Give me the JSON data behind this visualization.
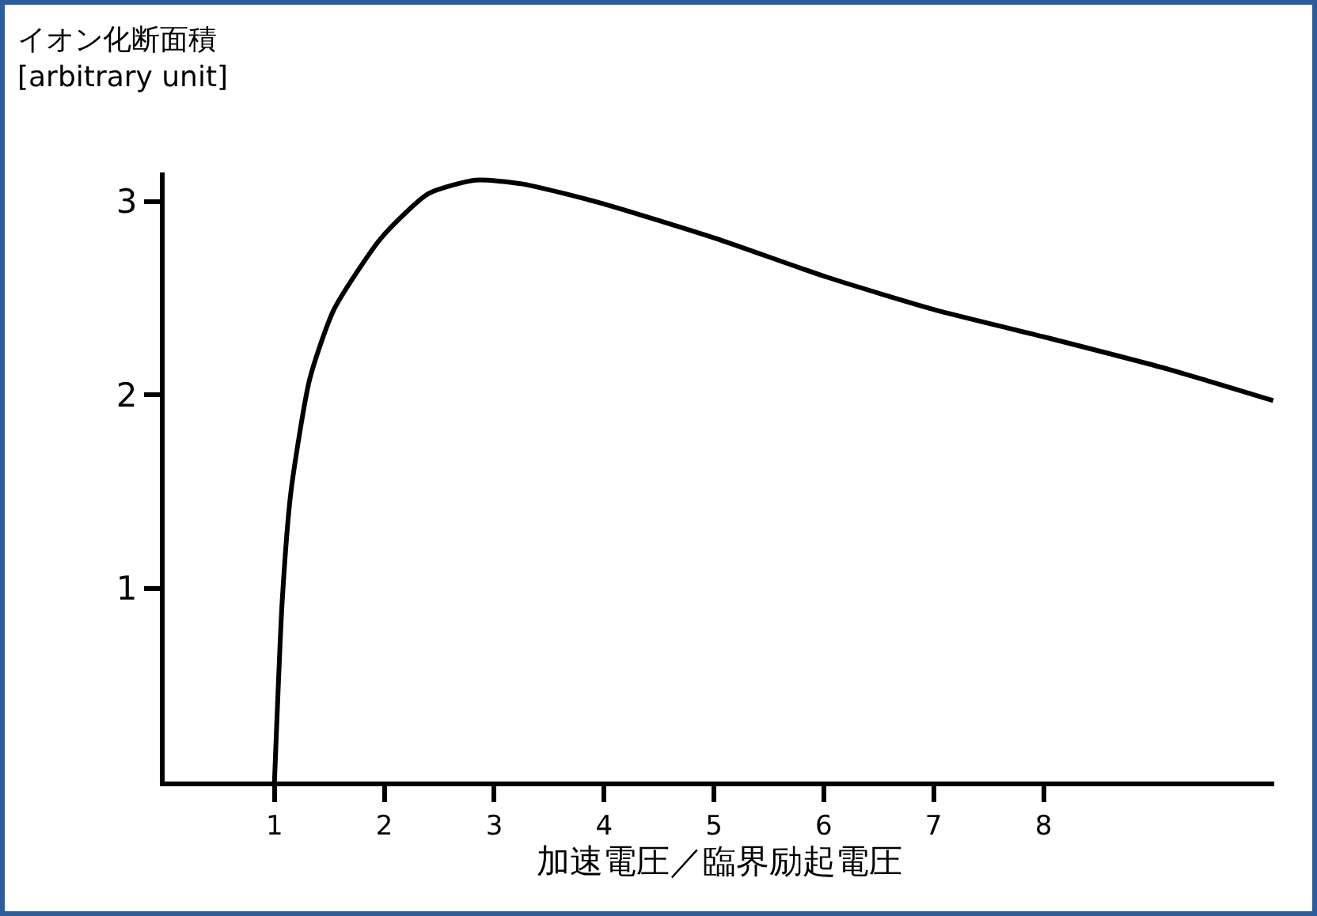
{
  "chart_data": {
    "type": "line",
    "xlabel": "加速電圧／臨界励起電圧",
    "ylabel": "イオン化断面積\n[arbitrary unit]",
    "x": [
      1,
      1.07,
      1.15,
      1.32,
      1.54,
      1.97,
      2.4,
      2.83,
      3.26,
      3.98,
      5.01,
      6.02,
      7.01,
      8.0,
      9.15,
      10.09
    ],
    "series": [
      {
        "color": "#000000",
        "values": [
          0,
          0.93,
          1.5,
          2.08,
          2.44,
          2.81,
          3.04,
          3.11,
          3.09,
          2.99,
          2.81,
          2.61,
          2.44,
          2.3,
          2.13,
          1.97
        ]
      }
    ],
    "xlim": [
      0,
      10.1
    ],
    "xticks": [
      1,
      2,
      3,
      4,
      5,
      6,
      7,
      8
    ],
    "ylim": [
      0,
      3.15
    ],
    "yticks": [
      1,
      2,
      3
    ],
    "grid": false,
    "legend": false,
    "marker": "none",
    "line_style": "solid"
  }
}
